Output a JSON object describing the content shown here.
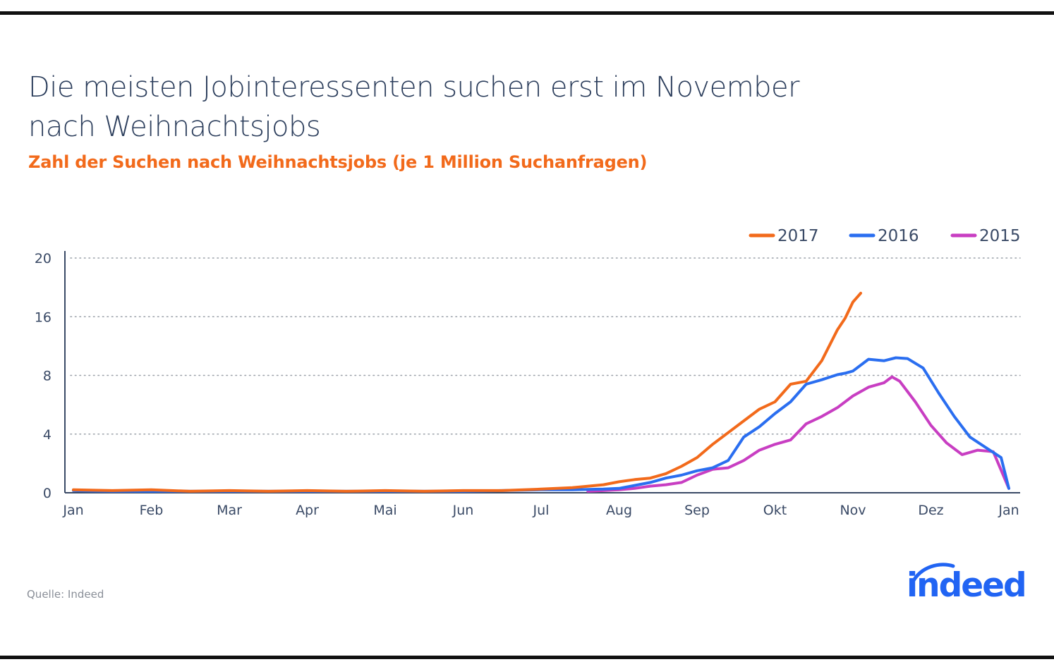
{
  "header": {
    "title_line1": "Die meisten Jobinteressenten suchen erst im November",
    "title_line2": "nach Weihnachtsjobs",
    "subtitle": "Zahl der Suchen nach Weihnachtsjobs (je 1 Million Suchanfragen)"
  },
  "footer": {
    "source": "Quelle: Indeed",
    "logo_text": "indeed"
  },
  "colors": {
    "title": "#2c3e5c",
    "subtitle": "#f26a1b",
    "series_2017": "#f26a1b",
    "series_2016": "#2a6ef0",
    "series_2015": "#c83ec2",
    "logo": "#2164f3"
  },
  "chart_data": {
    "type": "line",
    "ylim": [
      0,
      20
    ],
    "y_ticks": [
      0,
      4,
      8,
      16,
      20
    ],
    "y_tick_labels": [
      "0",
      "4",
      "8",
      "16",
      "20"
    ],
    "x_range": [
      0,
      12
    ],
    "x_ticks": [
      0,
      1,
      2,
      3,
      4,
      5,
      6,
      7,
      8,
      9,
      10,
      11,
      12
    ],
    "x_tick_labels": [
      "Jan",
      "Feb",
      "Mar",
      "Apr",
      "Mai",
      "Jun",
      "Jul",
      "Aug",
      "Sep",
      "Okt",
      "Nov",
      "Dez",
      "Jan"
    ],
    "grid": "horizontal-dotted",
    "legend_position": "top-right",
    "series": [
      {
        "name": "2017",
        "color": "#f26a1b",
        "x": [
          0,
          0.5,
          1,
          1.5,
          2,
          2.5,
          3,
          3.5,
          4,
          4.5,
          5,
          5.5,
          6,
          6.4,
          6.8,
          7.0,
          7.2,
          7.4,
          7.6,
          7.8,
          8.0,
          8.2,
          8.4,
          8.6,
          8.8,
          9.0,
          9.2,
          9.4,
          9.6,
          9.8,
          9.9,
          10.0,
          10.1
        ],
        "y": [
          0.2,
          0.15,
          0.2,
          0.1,
          0.15,
          0.1,
          0.15,
          0.1,
          0.15,
          0.1,
          0.15,
          0.15,
          0.25,
          0.35,
          0.55,
          0.75,
          0.9,
          1.0,
          1.3,
          1.8,
          2.4,
          3.3,
          4.1,
          4.9,
          5.7,
          6.2,
          7.4,
          7.6,
          10.0,
          14.2,
          15.8,
          17.0,
          17.6
        ]
      },
      {
        "name": "2016",
        "color": "#2a6ef0",
        "x": [
          0,
          0.5,
          1,
          1.5,
          2,
          2.5,
          3,
          3.5,
          4,
          4.5,
          5,
          5.5,
          6,
          6.4,
          6.8,
          7.0,
          7.2,
          7.4,
          7.6,
          7.8,
          8.0,
          8.2,
          8.4,
          8.6,
          8.8,
          9.0,
          9.2,
          9.4,
          9.6,
          9.8,
          9.9,
          10.0,
          10.2,
          10.4,
          10.55,
          10.7,
          10.9,
          11.1,
          11.3,
          11.5,
          11.7,
          11.9,
          12.0
        ],
        "y": [
          0.15,
          0.1,
          0.1,
          0.1,
          0.1,
          0.1,
          0.1,
          0.1,
          0.1,
          0.1,
          0.1,
          0.15,
          0.2,
          0.2,
          0.25,
          0.3,
          0.5,
          0.7,
          1.0,
          1.2,
          1.5,
          1.7,
          2.2,
          3.8,
          4.5,
          5.4,
          6.2,
          7.4,
          7.7,
          8.1,
          8.3,
          8.6,
          10.2,
          10.0,
          10.4,
          10.3,
          9.0,
          6.8,
          5.2,
          3.8,
          3.1,
          2.4,
          0.3
        ]
      },
      {
        "name": "2015",
        "color": "#c83ec2",
        "x": [
          6.6,
          6.8,
          7.0,
          7.2,
          7.4,
          7.6,
          7.8,
          8.0,
          8.2,
          8.4,
          8.6,
          8.8,
          9.0,
          9.2,
          9.4,
          9.6,
          9.8,
          10.0,
          10.2,
          10.4,
          10.5,
          10.6,
          10.8,
          11.0,
          11.2,
          11.4,
          11.6,
          11.8,
          12.0
        ],
        "y": [
          0.1,
          0.15,
          0.2,
          0.3,
          0.45,
          0.55,
          0.7,
          1.2,
          1.6,
          1.7,
          2.2,
          2.9,
          3.3,
          3.6,
          4.7,
          5.2,
          5.8,
          6.6,
          7.2,
          7.5,
          7.9,
          7.6,
          6.2,
          4.6,
          3.4,
          2.6,
          2.9,
          2.8,
          0.3
        ]
      }
    ]
  }
}
